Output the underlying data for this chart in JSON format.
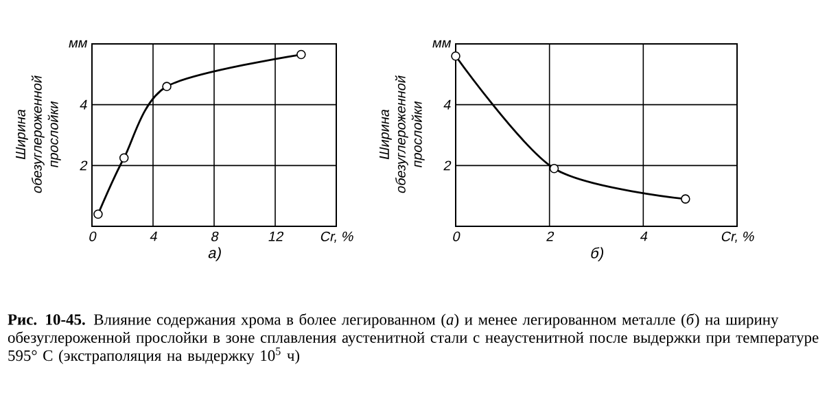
{
  "chart_data": [
    {
      "type": "line",
      "xlabel": "а)",
      "ylabel": "Ширина обезуглероженной прослойки",
      "x": [
        0.4,
        2.1,
        4.9,
        13.7
      ],
      "series": [
        {
          "color": "#000000",
          "values": [
            0.4,
            2.25,
            4.6,
            5.65
          ]
        }
      ],
      "xlim": [
        0,
        16
      ],
      "ylim": [
        0,
        6
      ],
      "xticks": [
        0,
        4,
        8,
        12,
        {
          "value": 16,
          "label": "Cr, %"
        }
      ],
      "yticks": [
        2,
        4,
        {
          "value": 6,
          "label": "мм"
        }
      ],
      "grid": true,
      "marker": "circle",
      "line_style": "solid"
    },
    {
      "type": "line",
      "xlabel": "б)",
      "ylabel": "Ширина обезуглероженной прослойки",
      "x": [
        0,
        2.1,
        4.9
      ],
      "series": [
        {
          "color": "#000000",
          "values": [
            5.6,
            1.9,
            0.9
          ]
        }
      ],
      "xlim": [
        0,
        6
      ],
      "ylim": [
        0,
        6
      ],
      "xticks": [
        0,
        2,
        4,
        {
          "value": 6,
          "label": "Cr, %"
        }
      ],
      "yticks": [
        2,
        4,
        {
          "value": 6,
          "label": "мм"
        }
      ],
      "grid": true,
      "marker": "circle",
      "line_style": "solid",
      "annotations": [
        "**Рис. 10-45.** Влияние содержания хрома в более легированном (*а*) и менее легированном металле (*б*) на ширину обезуглероженной прослойки в зоне сплавления аустенитной стали с неаустенитной после выдержки при температуре 595° С (экстраполяция на выдержку 10$^{5}$ ч)"
      ]
    }
  ]
}
